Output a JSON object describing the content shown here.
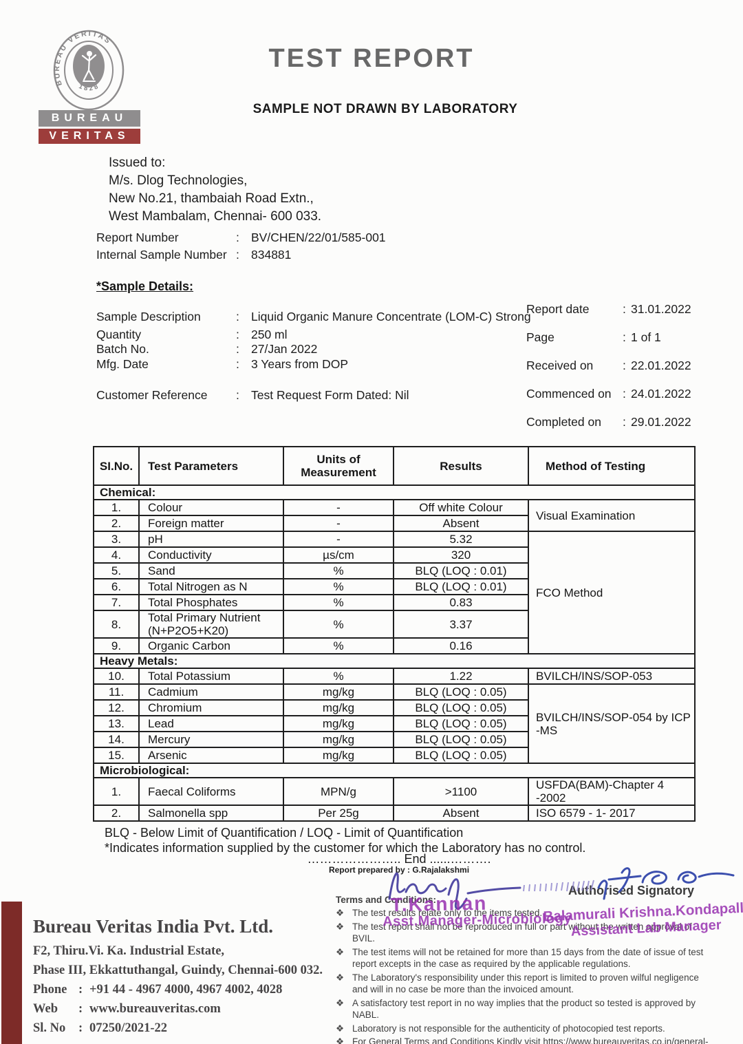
{
  "punct": {
    "colon": ":"
  },
  "header": {
    "title": "TEST REPORT",
    "subtitle": "SAMPLE NOT DRAWN BY LABORATORY"
  },
  "logo": {
    "ring_text": "BUREAU VERITAS",
    "year": "1828",
    "box1": "BUREAU",
    "box2": "VERITAS"
  },
  "issued_to": {
    "label": "Issued to:",
    "line1": "M/s. Dlog Technologies,",
    "line2": "New No.21, thambaiah Road Extn.,",
    "line3": "West Mambalam, Chennai- 600 033."
  },
  "report_ids": {
    "rows": [
      {
        "label": "Report Number",
        "value": "BV/CHEN/22/01/585-001"
      },
      {
        "label": "Internal Sample Number",
        "value": "834881"
      }
    ]
  },
  "sample_details": {
    "heading": "*Sample Details:",
    "rows": [
      {
        "label": "Sample Description",
        "value": "Liquid Organic Manure Concentrate (LOM-C) Strong"
      },
      {
        "label": "Quantity",
        "value": "250 ml"
      },
      {
        "label": "Batch No.",
        "value": "27/Jan 2022"
      },
      {
        "label": "Mfg. Date",
        "value": "3 Years from DOP"
      }
    ],
    "customer_reference": {
      "label": "Customer Reference",
      "value": "Test Request Form Dated: Nil"
    }
  },
  "dates": {
    "rows": [
      {
        "label": "Report date",
        "value": "31.01.2022"
      },
      {
        "label": "Page",
        "value": "1 of 1"
      },
      {
        "label": "Received on",
        "value": "22.01.2022"
      },
      {
        "label": "Commenced on",
        "value": "24.01.2022"
      },
      {
        "label": "Completed on",
        "value": "29.01.2022"
      }
    ]
  },
  "results_table": {
    "headers": {
      "sl": "SI.No.",
      "param": "Test Parameters",
      "units": "Units of Measurement",
      "results": "Results",
      "method": "Method of Testing"
    },
    "rows": [
      {
        "section": "Chemical:"
      },
      {
        "cells": [
          [
            "1.",
            "sl"
          ],
          [
            "Colour",
            "param"
          ],
          [
            "-",
            "units"
          ],
          [
            "Off white Colour",
            "result"
          ],
          [
            "Visual Examination",
            "method",
            2
          ]
        ]
      },
      {
        "cells": [
          [
            "2.",
            "sl"
          ],
          [
            "Foreign matter",
            "param"
          ],
          [
            "-",
            "units"
          ],
          [
            "Absent",
            "result"
          ]
        ]
      },
      {
        "cells": [
          [
            "3.",
            "sl"
          ],
          [
            "pH",
            "param"
          ],
          [
            "-",
            "units"
          ],
          [
            "5.32",
            "result"
          ],
          [
            "FCO Method",
            "method",
            7
          ]
        ]
      },
      {
        "cells": [
          [
            "4.",
            "sl"
          ],
          [
            "Conductivity",
            "param"
          ],
          [
            "µs/cm",
            "units"
          ],
          [
            "320",
            "result"
          ]
        ]
      },
      {
        "cells": [
          [
            "5.",
            "sl"
          ],
          [
            "Sand",
            "param"
          ],
          [
            "%",
            "units"
          ],
          [
            "BLQ (LOQ : 0.01)",
            "result"
          ]
        ]
      },
      {
        "cells": [
          [
            "6.",
            "sl"
          ],
          [
            "Total Nitrogen as N",
            "param"
          ],
          [
            "%",
            "units"
          ],
          [
            "BLQ (LOQ : 0.01)",
            "result"
          ]
        ]
      },
      {
        "cells": [
          [
            "7.",
            "sl"
          ],
          [
            "Total Phosphates",
            "param"
          ],
          [
            "%",
            "units"
          ],
          [
            "0.83",
            "result"
          ]
        ]
      },
      {
        "cells": [
          [
            "8.",
            "sl"
          ],
          [
            "Total Primary Nutrient (N+P2O5+K20)",
            "param"
          ],
          [
            "%",
            "units"
          ],
          [
            "3.37",
            "result"
          ]
        ],
        "tall": true
      },
      {
        "cells": [
          [
            "9.",
            "sl"
          ],
          [
            "Organic Carbon",
            "param"
          ],
          [
            "%",
            "units"
          ],
          [
            "0.16",
            "result"
          ]
        ]
      },
      {
        "section": "Heavy Metals:"
      },
      {
        "cells": [
          [
            "10.",
            "sl"
          ],
          [
            "Total Potassium",
            "param"
          ],
          [
            "%",
            "units"
          ],
          [
            "1.22",
            "result"
          ],
          [
            "BVILCH/INS/SOP-053",
            "method"
          ]
        ]
      },
      {
        "cells": [
          [
            "11.",
            "sl"
          ],
          [
            "Cadmium",
            "param"
          ],
          [
            "mg/kg",
            "units"
          ],
          [
            "BLQ (LOQ : 0.05)",
            "result"
          ],
          [
            "BVILCH/INS/SOP-054 by ICP -MS",
            "method",
            5
          ]
        ]
      },
      {
        "cells": [
          [
            "12.",
            "sl"
          ],
          [
            "Chromium",
            "param"
          ],
          [
            "mg/kg",
            "units"
          ],
          [
            "BLQ (LOQ : 0.05)",
            "result"
          ]
        ]
      },
      {
        "cells": [
          [
            "13.",
            "sl"
          ],
          [
            "Lead",
            "param"
          ],
          [
            "mg/kg",
            "units"
          ],
          [
            "BLQ (LOQ : 0.05)",
            "result"
          ]
        ]
      },
      {
        "cells": [
          [
            "14.",
            "sl"
          ],
          [
            "Mercury",
            "param"
          ],
          [
            "mg/kg",
            "units"
          ],
          [
            "BLQ (LOQ : 0.05)",
            "result"
          ]
        ]
      },
      {
        "cells": [
          [
            "15.",
            "sl"
          ],
          [
            "Arsenic",
            "param"
          ],
          [
            "mg/kg",
            "units"
          ],
          [
            "BLQ (LOQ : 0.05)",
            "result"
          ]
        ]
      },
      {
        "section": "Microbiological:"
      },
      {
        "cells": [
          [
            "1.",
            "sl"
          ],
          [
            "Faecal Coliforms",
            "param"
          ],
          [
            "MPN/g",
            "units"
          ],
          [
            ">1100",
            "result"
          ],
          [
            "USFDA(BAM)-Chapter 4 -2002",
            "method"
          ]
        ]
      },
      {
        "cells": [
          [
            "2.",
            "sl"
          ],
          [
            "Salmonella spp",
            "param"
          ],
          [
            "Per 25g",
            "units"
          ],
          [
            "Absent",
            "result"
          ],
          [
            "ISO 6579 - 1- 2017",
            "method"
          ]
        ]
      }
    ]
  },
  "notes": {
    "line1": "BLQ - Below Limit of Quantification / LOQ - Limit of Quantification",
    "line2": "*Indicates information supplied by the customer for which the Laboratory has no control.",
    "end_line": "………………….. End ......……….",
    "prepared_by": "Report prepared by : G.Rajalakshmi"
  },
  "signature": {
    "authorised": "Authorised Signatory",
    "stamp1_name": "T.Kannan",
    "stamp1_title": "Asst.Manager-Microbiology",
    "stamp2_name": "Balamurali Krishna.Kondapalli",
    "stamp2_title": "Assistant Lab Manager"
  },
  "terms": {
    "heading": "Terms and Conditions:",
    "bullet": "❖",
    "items": [
      "The test results relate only to the items tested.",
      "The test report shall not be reproduced in full or part without the written approval of BVIL.",
      "The test items will not be retained for more than 15 days from the date of issue of test report excepts in the case as required by the applicable regulations.",
      "The Laboratory's responsibility under this report is limited to proven wilful negligence and will in no case be more than the invoiced amount.",
      "A satisfactory test report in no way implies that the product so tested is approved by NABL.",
      "Laboratory is not responsible for the authenticity of photocopied test reports.",
      "For General Terms and Conditions Kindly visit https://www.bureauveritas.co.in/general-terms-and-conditions-service"
    ]
  },
  "footer": {
    "company": "Bureau Veritas India Pvt. Ltd.",
    "address1": "F2, Thiru.Vi. Ka. Industrial Estate,",
    "address2": "Phase III, Ekkattuthangal, Guindy, Chennai-600 032.",
    "rows": [
      {
        "label": "Phone",
        "value": "+91 44 - 4967 4000, 4967 4002, 4028"
      },
      {
        "label": "Web",
        "value": "www.bureauveritas.com"
      },
      {
        "label": "Sl. No",
        "value": "07250/2021-22"
      }
    ]
  },
  "colors": {
    "logo_gray": "#8f8d8e",
    "logo_red": "#9d3d3b",
    "title_gray": "#686868",
    "stamp_purple": "#9630af",
    "signature_violet": "#453e9e",
    "signature_blue": "#3c4fae",
    "footer_bar_red": "#7d2b28"
  }
}
